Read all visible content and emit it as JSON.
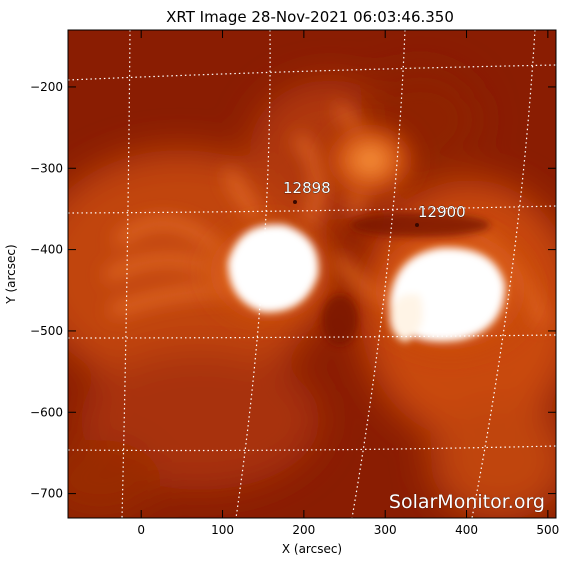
{
  "title": "XRT Image 28-Nov-2021 06:03:46.350",
  "x_axis": {
    "label": "X (arcsec)",
    "range": [
      -90,
      510
    ],
    "ticks": [
      0,
      100,
      200,
      300,
      400,
      500
    ],
    "tick_labels": [
      "0",
      "100",
      "200",
      "300",
      "400",
      "500"
    ]
  },
  "y_axis": {
    "label": "Y (arcsec)",
    "range": [
      -730,
      -130
    ],
    "ticks": [
      -200,
      -300,
      -400,
      -500,
      -600,
      -700
    ],
    "tick_labels": [
      "−200",
      "−300",
      "−400",
      "−500",
      "−600",
      "−700"
    ]
  },
  "regions": [
    {
      "id": "12898",
      "label": "12898",
      "x": 175,
      "y": -347
    },
    {
      "id": "12900",
      "label": "12900",
      "x": 345,
      "y": -372
    }
  ],
  "watermark": "SolarMonitor.org",
  "colors": {
    "background": "#ffffff",
    "image_dark": "#7a1500",
    "image_mid": "#b83a06",
    "image_bright": "#ff8a2a",
    "saturated": "#ffffff",
    "grid": "#ffffff",
    "text": "#000000"
  }
}
